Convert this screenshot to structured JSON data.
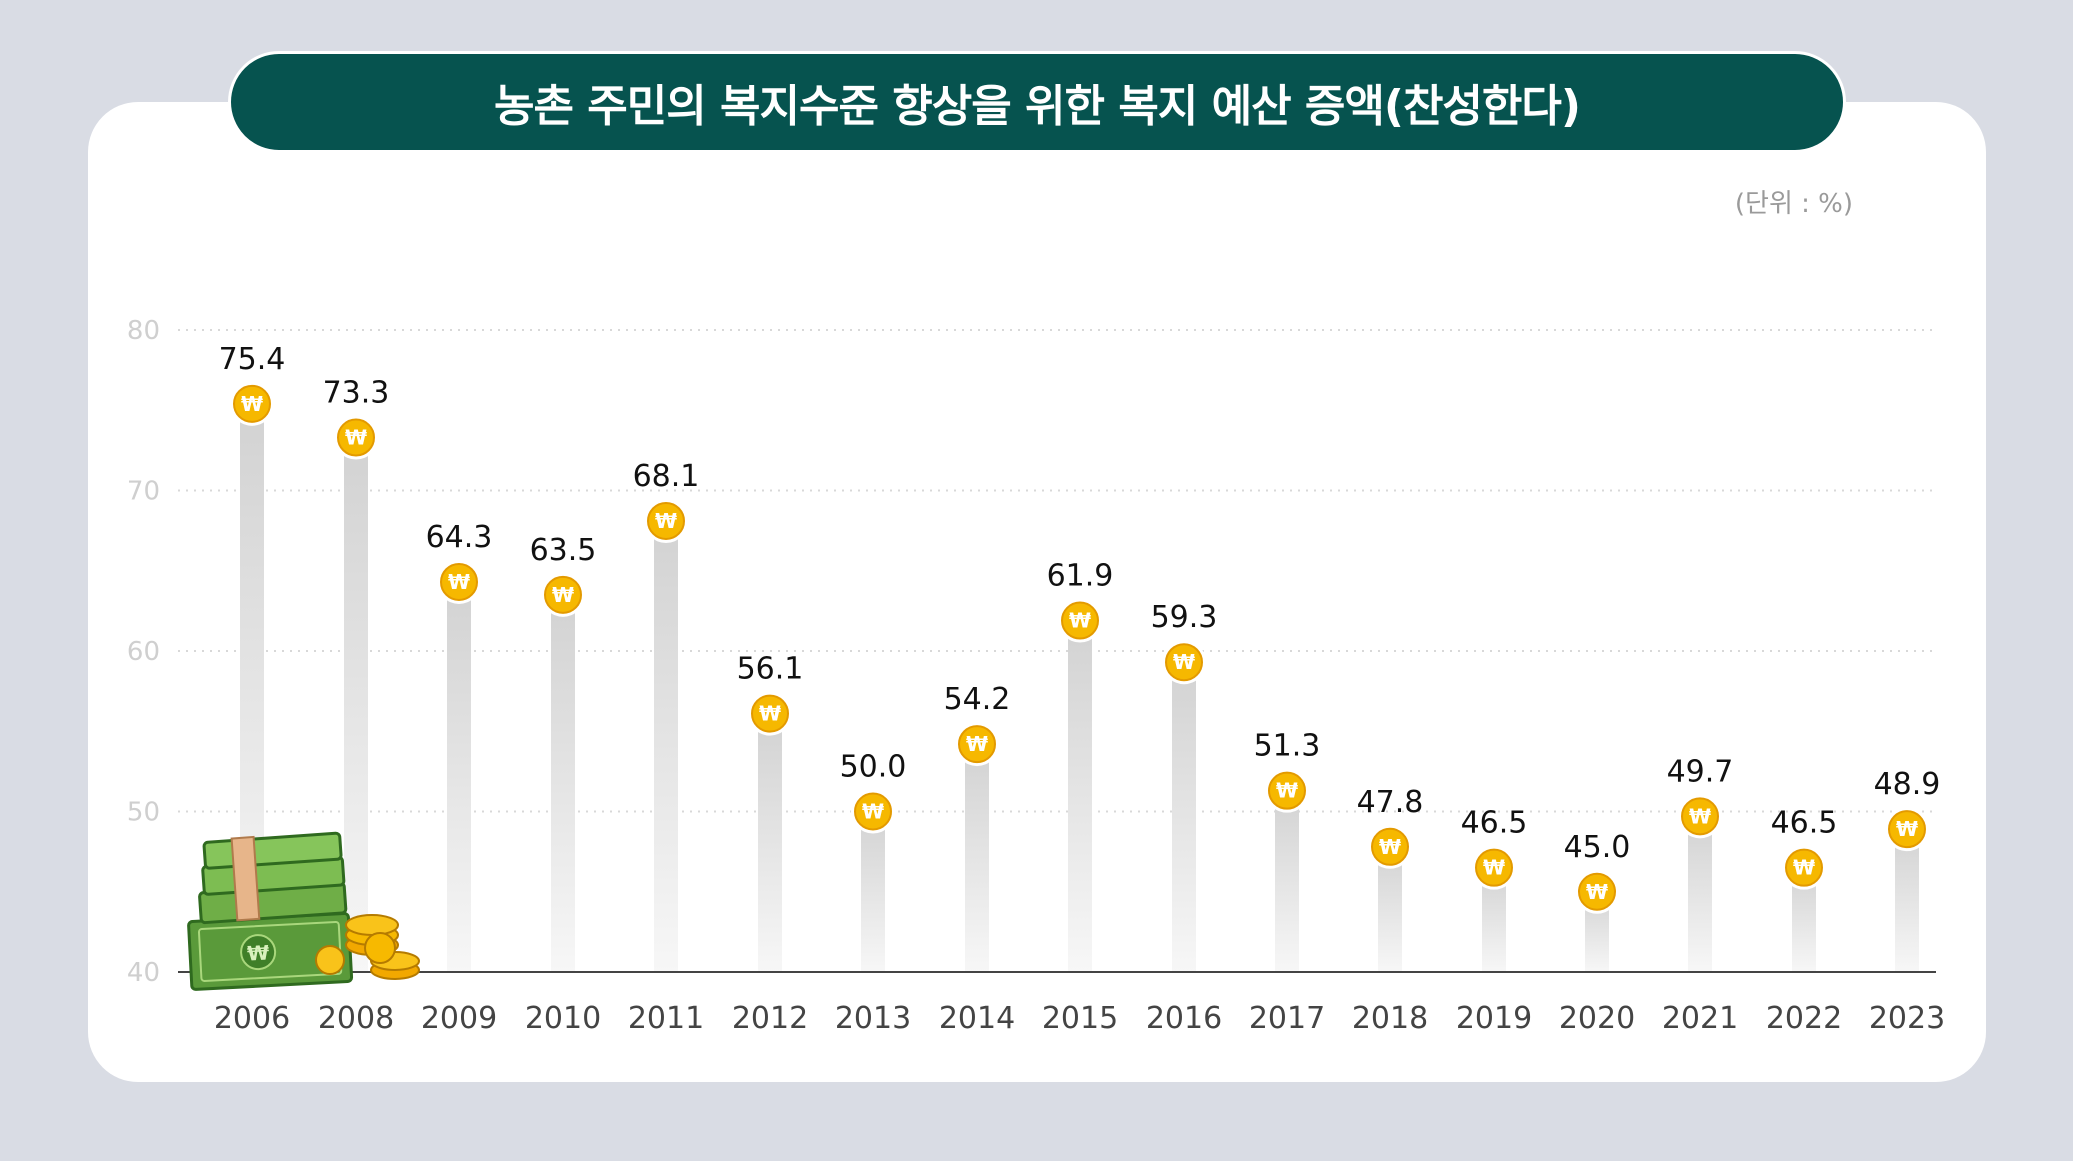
{
  "title": "농촌 주민의 복지수준 향상을 위한 복지 예산 증액(찬성한다)",
  "unit_label": "(단위 : %)",
  "coin_symbol": "₩",
  "colors": {
    "background": "#d9dce4",
    "title_bg": "#06534f",
    "coin": "#f6b800",
    "coin_ring": "#ffffff",
    "bar_top": "#d2d2d2",
    "bar_bottom": "#f7f7f7"
  },
  "chart_data": {
    "type": "bar",
    "title": "농촌 주민의 복지수준 향상을 위한 복지 예산 증액(찬성한다)",
    "unit": "(단위 : %)",
    "categories": [
      "2006",
      "2008",
      "2009",
      "2010",
      "2011",
      "2012",
      "2013",
      "2014",
      "2015",
      "2016",
      "2017",
      "2018",
      "2019",
      "2020",
      "2021",
      "2022",
      "2023"
    ],
    "values": [
      75.4,
      73.3,
      64.3,
      63.5,
      68.1,
      56.1,
      50.0,
      54.2,
      61.9,
      59.3,
      51.3,
      47.8,
      46.5,
      45.0,
      49.7,
      46.5,
      48.9
    ],
    "value_labels": [
      "75.4",
      "73.3",
      "64.3",
      "63.5",
      "68.1",
      "56.1",
      "50.0",
      "54.2",
      "61.9",
      "59.3",
      "51.3",
      "47.8",
      "46.5",
      "45.0",
      "49.7",
      "46.5",
      "48.9"
    ],
    "ylim": [
      40,
      80
    ],
    "yticks": [
      "40",
      "50",
      "60",
      "70",
      "80"
    ],
    "grid": "horizontal-dotted",
    "legend": "none"
  }
}
